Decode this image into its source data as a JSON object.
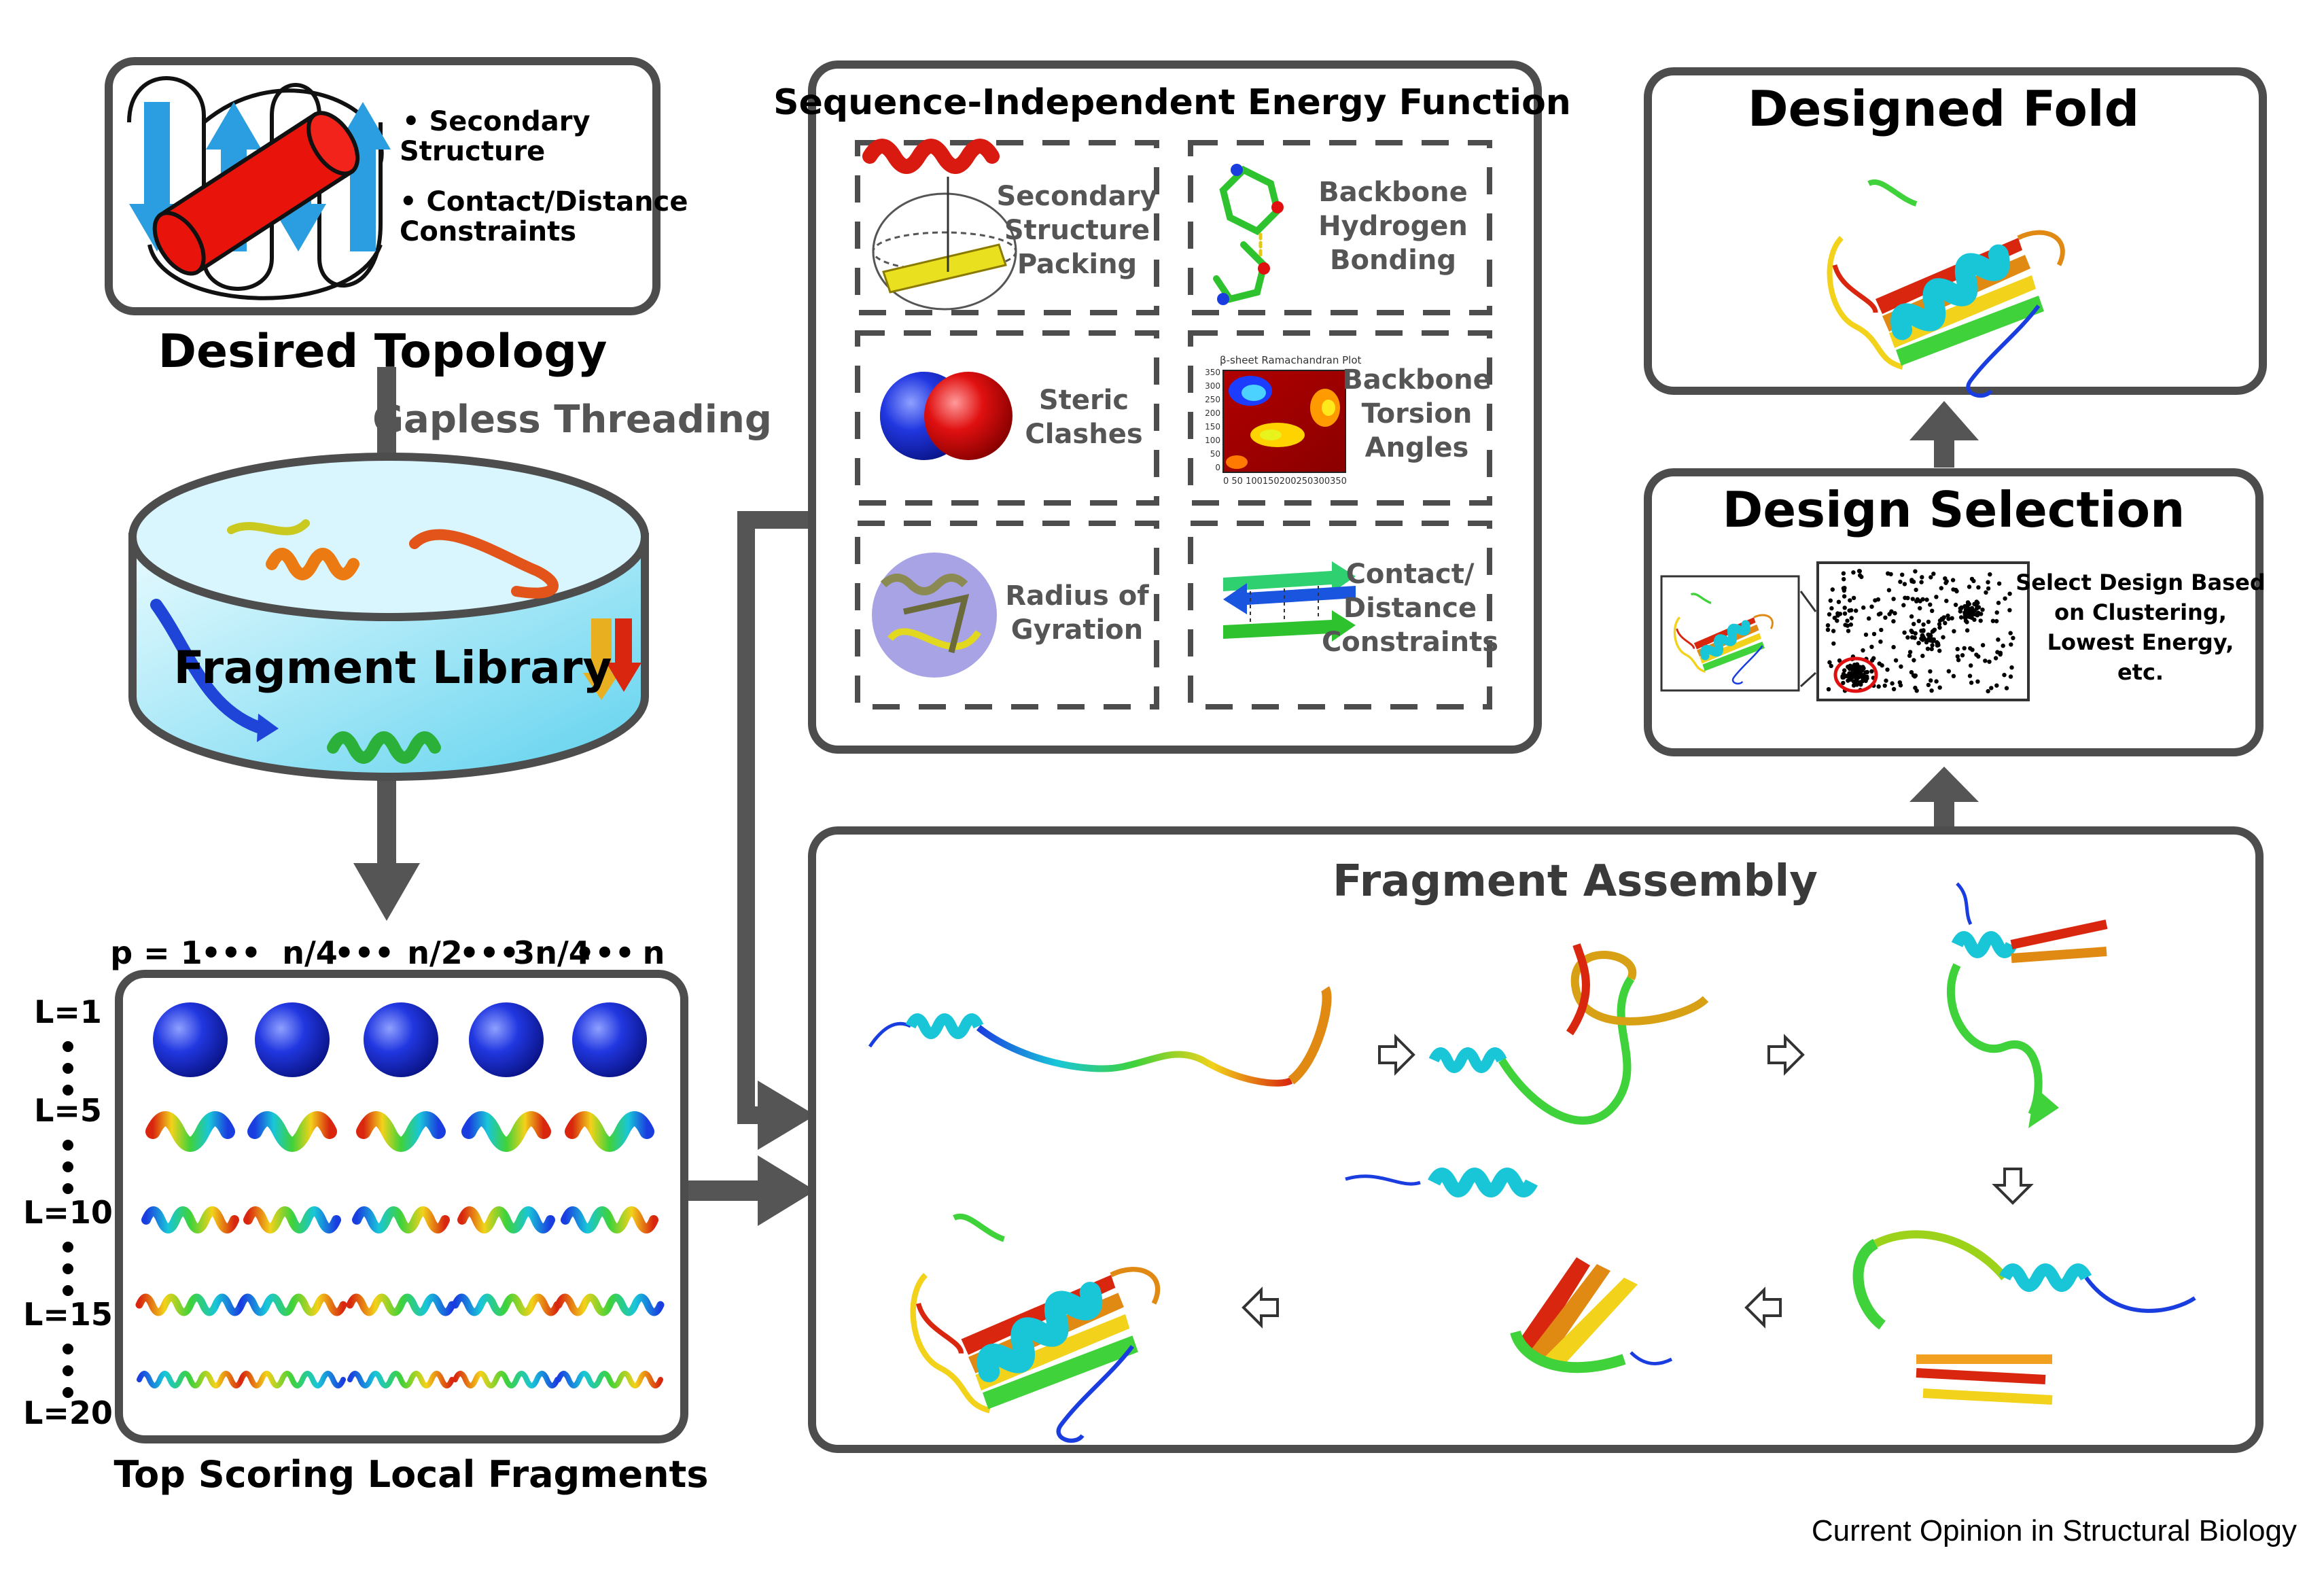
{
  "topology": {
    "bullets": [
      "Secondary",
      "Structure",
      "Contact/Distance",
      "Constraints"
    ],
    "title": "Desired Topology"
  },
  "threading_label": "Gapless Threading",
  "library_label": "Fragment Library",
  "fragments": {
    "positions": [
      "p = 1",
      "•••",
      "n/4",
      "•••",
      "n/2",
      "•••",
      "3n/4",
      "•••",
      "n"
    ],
    "lengths": [
      "L=1",
      "L=5",
      "L=10",
      "L=15",
      "L=20"
    ],
    "title": "Top Scoring Local Fragments"
  },
  "energy": {
    "title": "Sequence-Independent Energy Function",
    "terms": [
      [
        "Secondary",
        "Structure",
        "Packing"
      ],
      [
        "Backbone",
        "Hydrogen",
        "Bonding"
      ],
      [
        "Steric",
        "Clashes"
      ],
      [
        "Backbone",
        "Torsion",
        "Angles"
      ],
      [
        "Radius of",
        "Gyration"
      ],
      [
        "Contact/",
        "Distance",
        "Constraints"
      ]
    ],
    "rama_title": "β-sheet Ramachandran Plot",
    "rama_ticks_y": [
      "350",
      "300",
      "250",
      "200",
      "150",
      "100",
      "50",
      "0"
    ],
    "rama_ticks_x": "0  50 100150200250300350"
  },
  "designed_fold": {
    "title": "Designed Fold"
  },
  "design_selection": {
    "title": "Design Selection",
    "criteria": [
      "Select Design Based",
      "on Clustering,",
      "Lowest Energy,",
      "etc."
    ]
  },
  "assembly": {
    "title": "Fragment Assembly"
  },
  "credit": "Current Opinion in Structural Biology",
  "colors": {
    "frame": "#4d4d4d",
    "arrow": "#555555",
    "strand": "#2a9ee0",
    "helix": "#e8140c",
    "library_fill": "#bdeefa",
    "sphere": "#1526c9"
  }
}
